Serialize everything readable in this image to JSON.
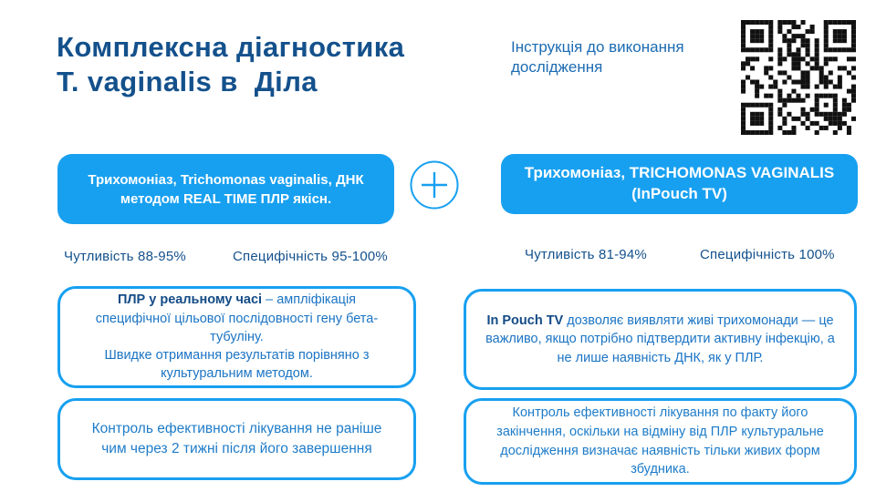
{
  "colors": {
    "accent": "#18A0F0",
    "title_blue": "#14518C",
    "body_blue": "#1B74C4",
    "lead_blue": "#134B86",
    "note_blue": "#1E7CC9"
  },
  "header": {
    "title": "Комплексна діагностика\nT. vaginalis в  Діла",
    "subtitle": "Інструкція до виконання дослідження"
  },
  "icons": {
    "plus_icon": "plus",
    "qr_icon": "qr-code"
  },
  "tests": {
    "left": {
      "button_label": "Трихомоніаз, Trichomonas vaginalis, ДНК методом REAL TIME ПЛР якісн.",
      "sensitivity": "Чутливість 88-95%",
      "specificity": "Специфічність 95-100%",
      "description_lead": "ПЛР у реальному часі",
      "description_rest": " – ампліфікація специфічної цільової послідовності гену бета-тубуліну.\nШвидке отримання результатів порівняно з культуральним методом.",
      "control_note": "Контроль ефективності лікування не раніше чим через 2 тижні після його завершення"
    },
    "right": {
      "button_label": "Трихомоніаз, TRICHOMONAS VAGINALIS (InPouch TV)",
      "sensitivity": "Чутливість 81-94%",
      "specificity": "Специфічність 100%",
      "description_lead": "In Pouch TV",
      "description_rest": " дозволяє виявляти живі трихомонади — це важливо, якщо потрібно підтвердити активну інфекцію, а не лише наявність ДНК, як у ПЛР.",
      "control_note": "Контроль ефективності лікування по факту його закінчення, оскільки на відміну від ПЛР культуральне дослідження визначає наявність тільки живих форм збудника."
    }
  }
}
